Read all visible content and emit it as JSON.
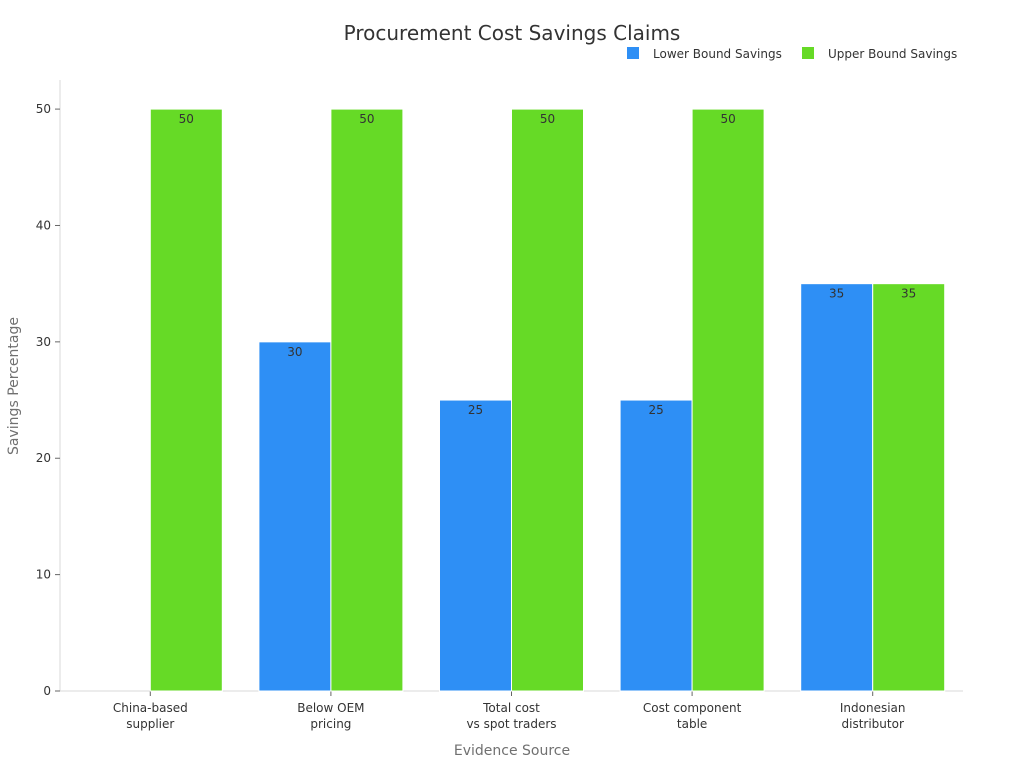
{
  "chart_data": {
    "type": "bar",
    "title": "Procurement Cost Savings Claims",
    "xlabel": "Evidence Source",
    "ylabel": "Savings Percentage",
    "categories": [
      "China-based\nsupplier",
      "Below OEM\npricing",
      "Total cost\nvs spot traders",
      "Cost component\ntable",
      "Indonesian\ndistributor"
    ],
    "series": [
      {
        "name": "Lower Bound Savings",
        "color": "#2e8ff5",
        "values": [
          null,
          30,
          25,
          25,
          35
        ]
      },
      {
        "name": "Upper Bound Savings",
        "color": "#66da26",
        "values": [
          50,
          50,
          50,
          50,
          35
        ]
      }
    ],
    "ylim": [
      0,
      52.5
    ],
    "yticks": [
      0,
      10,
      20,
      30,
      40,
      50
    ],
    "grid": false,
    "legend_position": "top-right",
    "data_labels": true
  }
}
